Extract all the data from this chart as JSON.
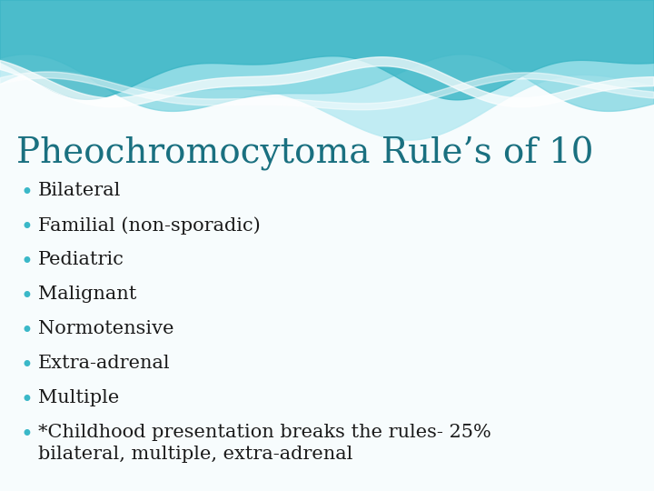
{
  "title": "Pheochromocytoma Rule’s of 10",
  "title_color": "#1a7080",
  "title_fontsize": 28,
  "bullet_items": [
    "Bilateral",
    "Familial (non-sporadic)",
    "Pediatric",
    "Malignant",
    "Normotensive",
    "Extra-adrenal",
    "Multiple",
    "*Childhood presentation breaks the rules- 25%\nbilateral, multiple, extra-adrenal"
  ],
  "bullet_dot_color": "#3ab8c8",
  "bullet_text_color": "#1a1a1a",
  "bullet_fontsize": 15,
  "bg_color": "#f7fcfd",
  "wave_dark": "#3ab5c5",
  "wave_mid": "#7dd4e0",
  "wave_light": "#b8eaf2",
  "wave_white": "#ffffff"
}
